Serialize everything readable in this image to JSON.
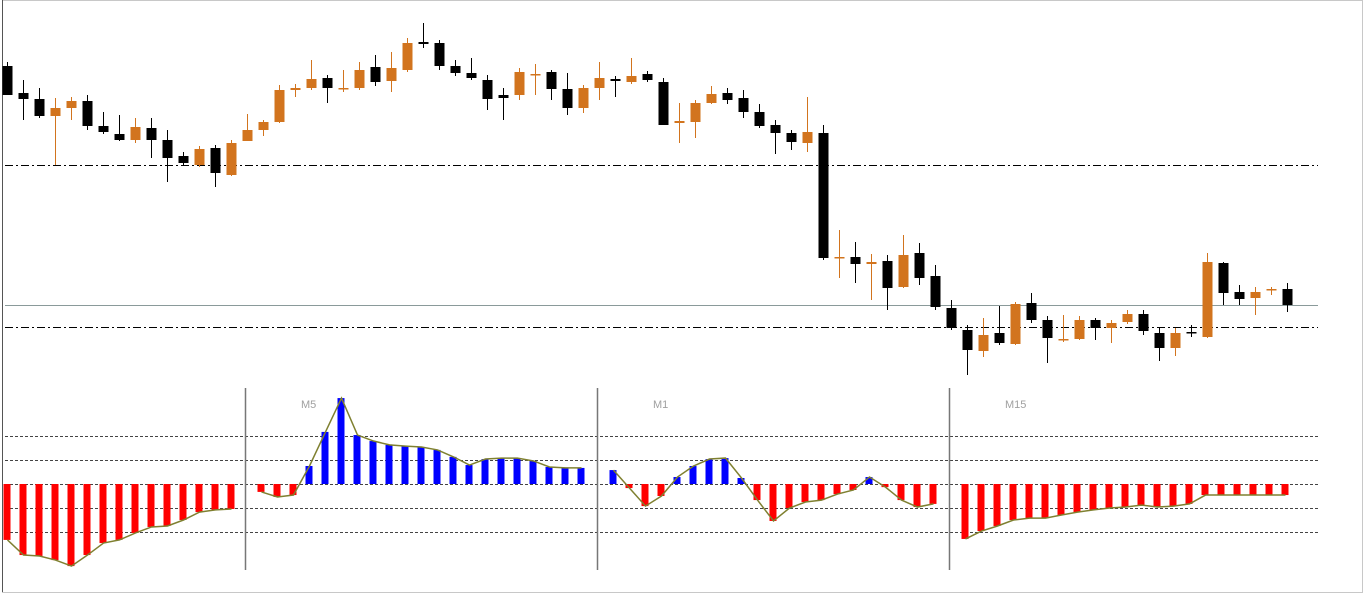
{
  "chart_data": [
    {
      "type": "candlestick",
      "open": [
        334,
        307,
        301,
        284,
        292,
        299,
        274,
        266,
        260,
        272,
        260,
        244,
        235,
        252,
        225,
        259,
        270,
        278,
        310,
        312,
        322,
        311,
        312,
        333,
        319,
        330,
        358,
        357,
        334,
        327,
        320,
        305,
        305,
        325,
        328,
        311,
        292,
        312,
        321,
        318,
        326,
        318,
        277,
        278,
        297,
        307,
        302,
        288,
        275,
        267,
        257,
        267,
        142,
        143,
        136,
        139,
        113,
        147,
        124,
        92,
        70,
        49,
        67,
        56,
        97,
        80,
        60,
        61,
        80,
        72,
        78,
        86,
        67,
        52,
        68,
        63,
        137,
        108,
        102,
        110,
        111
      ],
      "high": [
        338,
        320,
        312,
        302,
        303,
        305,
        288,
        285,
        282,
        282,
        270,
        248,
        254,
        255,
        260,
        286,
        280,
        315,
        316,
        340,
        325,
        330,
        338,
        345,
        348,
        362,
        377,
        360,
        340,
        342,
        325,
        312,
        332,
        336,
        330,
        327,
        315,
        338,
        324,
        342,
        329,
        322,
        297,
        300,
        314,
        312,
        310,
        296,
        280,
        270,
        303,
        275,
        170,
        158,
        146,
        145,
        165,
        157,
        135,
        100,
        75,
        82,
        94,
        98,
        107,
        84,
        85,
        84,
        82,
        80,
        90,
        90,
        72,
        72,
        75,
        147,
        138,
        115,
        113,
        113,
        117
      ],
      "low": [
        305,
        280,
        282,
        235,
        280,
        270,
        266,
        259,
        257,
        242,
        218,
        234,
        233,
        213,
        224,
        259,
        264,
        277,
        303,
        310,
        297,
        308,
        310,
        314,
        308,
        328,
        352,
        330,
        324,
        320,
        290,
        280,
        300,
        305,
        300,
        285,
        287,
        300,
        303,
        316,
        318,
        275,
        257,
        262,
        296,
        296,
        282,
        272,
        246,
        250,
        248,
        140,
        122,
        117,
        100,
        90,
        112,
        115,
        90,
        70,
        25,
        43,
        55,
        55,
        77,
        37,
        58,
        60,
        60,
        57,
        76,
        65,
        39,
        44,
        63,
        62,
        95,
        95,
        85,
        105,
        88
      ],
      "close": [
        305,
        301,
        284,
        292,
        299,
        274,
        268,
        260,
        273,
        260,
        242,
        237,
        251,
        227,
        257,
        270,
        278,
        310,
        312,
        321,
        312,
        312,
        330,
        318,
        332,
        357,
        356,
        334,
        327,
        322,
        301,
        302,
        328,
        326,
        311,
        292,
        312,
        322,
        319,
        324,
        320,
        275,
        279,
        297,
        306,
        300,
        288,
        274,
        267,
        258,
        268,
        142,
        143,
        136,
        138,
        112,
        145,
        122,
        93,
        72,
        50,
        65,
        57,
        96,
        80,
        62,
        61,
        80,
        72,
        77,
        86,
        69,
        52,
        67,
        67,
        138,
        107,
        101,
        108,
        111,
        95
      ],
      "up_color": "#d2741e",
      "down_color": "#000000",
      "ylim": [
        20,
        400
      ],
      "levels": [
        {
          "value": 235,
          "style": "dash-dot"
        },
        {
          "value": 95,
          "style": "solid"
        },
        {
          "value": 73,
          "style": "dash-dot"
        }
      ]
    },
    {
      "type": "histogram-panels",
      "ylim": [
        -4,
        4
      ],
      "yticks": [
        -2,
        -1,
        0,
        1,
        2
      ],
      "grid": true,
      "positive_color": "#0000ff",
      "negative_color": "#ff0000",
      "line_color": "#7f8030",
      "panels": [
        {
          "values": [
            -2.33,
            -2.96,
            -3.0,
            -3.17,
            -3.42,
            -2.96,
            -2.46,
            -2.33,
            -2.04,
            -1.79,
            -1.75,
            -1.5,
            -1.17,
            -1.08,
            -1.04
          ]
        },
        {
          "label": "M5",
          "values": [
            -0.33,
            -0.54,
            -0.46,
            0.75,
            2.17,
            3.58,
            2.04,
            1.79,
            1.63,
            1.58,
            1.54,
            1.42,
            1.13,
            0.79,
            1.04,
            1.08,
            1.08,
            0.96,
            0.71,
            0.67,
            0.67
          ]
        },
        {
          "label": "M1",
          "values": [
            0.58,
            -0.17,
            -0.92,
            -0.5,
            0.29,
            0.75,
            1.04,
            1.08,
            0.25,
            -0.67,
            -1.54,
            -1.0,
            -0.75,
            -0.67,
            -0.42,
            -0.25,
            0.29,
            -0.13,
            -0.67,
            -0.96,
            -0.83
          ]
        },
        {
          "label": "M15",
          "values": [
            -2.29,
            -1.96,
            -1.75,
            -1.5,
            -1.42,
            -1.42,
            -1.29,
            -1.17,
            -1.08,
            -1.0,
            -0.96,
            -0.88,
            -0.96,
            -0.92,
            -0.83,
            -0.46,
            -0.46,
            -0.46,
            -0.46,
            -0.46,
            -0.46
          ]
        }
      ]
    }
  ]
}
